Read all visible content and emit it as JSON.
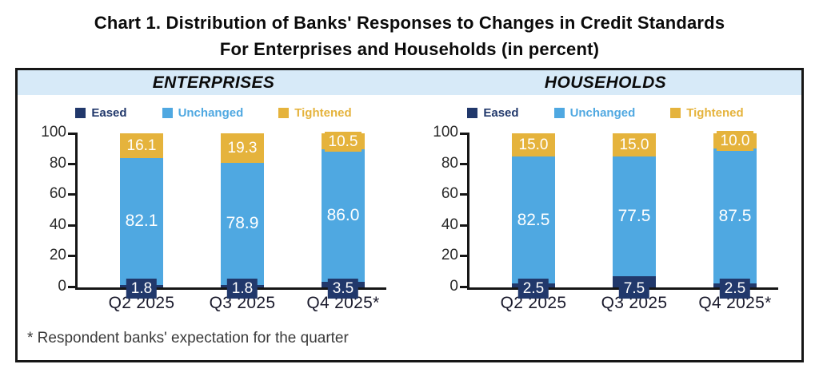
{
  "page_title": {
    "line1": "Chart 1. Distribution of Banks' Responses to Changes in Credit Standards",
    "line2": "For Enterprises and Households (in percent)"
  },
  "footnote": "* Respondent banks' expectation for the quarter",
  "colors": {
    "eased": "#21386b",
    "unchanged": "#4fa8e1",
    "tightened": "#e5b33c",
    "header_strip": "#d7eaf8",
    "axis": "#161616"
  },
  "chart_data": [
    {
      "type": "bar",
      "stacked": true,
      "title": "ENTERPRISES",
      "categories": [
        "Q2 2025",
        "Q3 2025",
        "Q4 2025*"
      ],
      "series": [
        {
          "name": "Eased",
          "color": "#21386b",
          "values": [
            1.8,
            1.8,
            3.5
          ],
          "labels": [
            "1.8",
            "1.8",
            "3.5"
          ]
        },
        {
          "name": "Unchanged",
          "color": "#4fa8e1",
          "values": [
            82.1,
            78.9,
            86.0
          ],
          "labels": [
            "82.1",
            "78.9",
            "86.0"
          ]
        },
        {
          "name": "Tightened",
          "color": "#e5b33c",
          "values": [
            16.1,
            19.3,
            10.5
          ],
          "labels": [
            "16.1",
            "19.3",
            "10.5"
          ]
        }
      ],
      "ylim": [
        0,
        100
      ],
      "yticks": [
        0,
        20,
        40,
        60,
        80,
        100
      ],
      "legend_position": "top",
      "grid": false
    },
    {
      "type": "bar",
      "stacked": true,
      "title": "HOUSEHOLDS",
      "categories": [
        "Q2 2025",
        "Q3 2025",
        "Q4 2025*"
      ],
      "series": [
        {
          "name": "Eased",
          "color": "#21386b",
          "values": [
            2.5,
            7.5,
            2.5
          ],
          "labels": [
            "2.5",
            "7.5",
            "2.5"
          ]
        },
        {
          "name": "Unchanged",
          "color": "#4fa8e1",
          "values": [
            82.5,
            77.5,
            87.5
          ],
          "labels": [
            "82.5",
            "77.5",
            "87.5"
          ]
        },
        {
          "name": "Tightened",
          "color": "#e5b33c",
          "values": [
            15.0,
            15.0,
            10.0
          ],
          "labels": [
            "15.0",
            "15.0",
            "10.0"
          ]
        }
      ],
      "ylim": [
        0,
        100
      ],
      "yticks": [
        0,
        20,
        40,
        60,
        80,
        100
      ],
      "legend_position": "top",
      "grid": false
    }
  ]
}
